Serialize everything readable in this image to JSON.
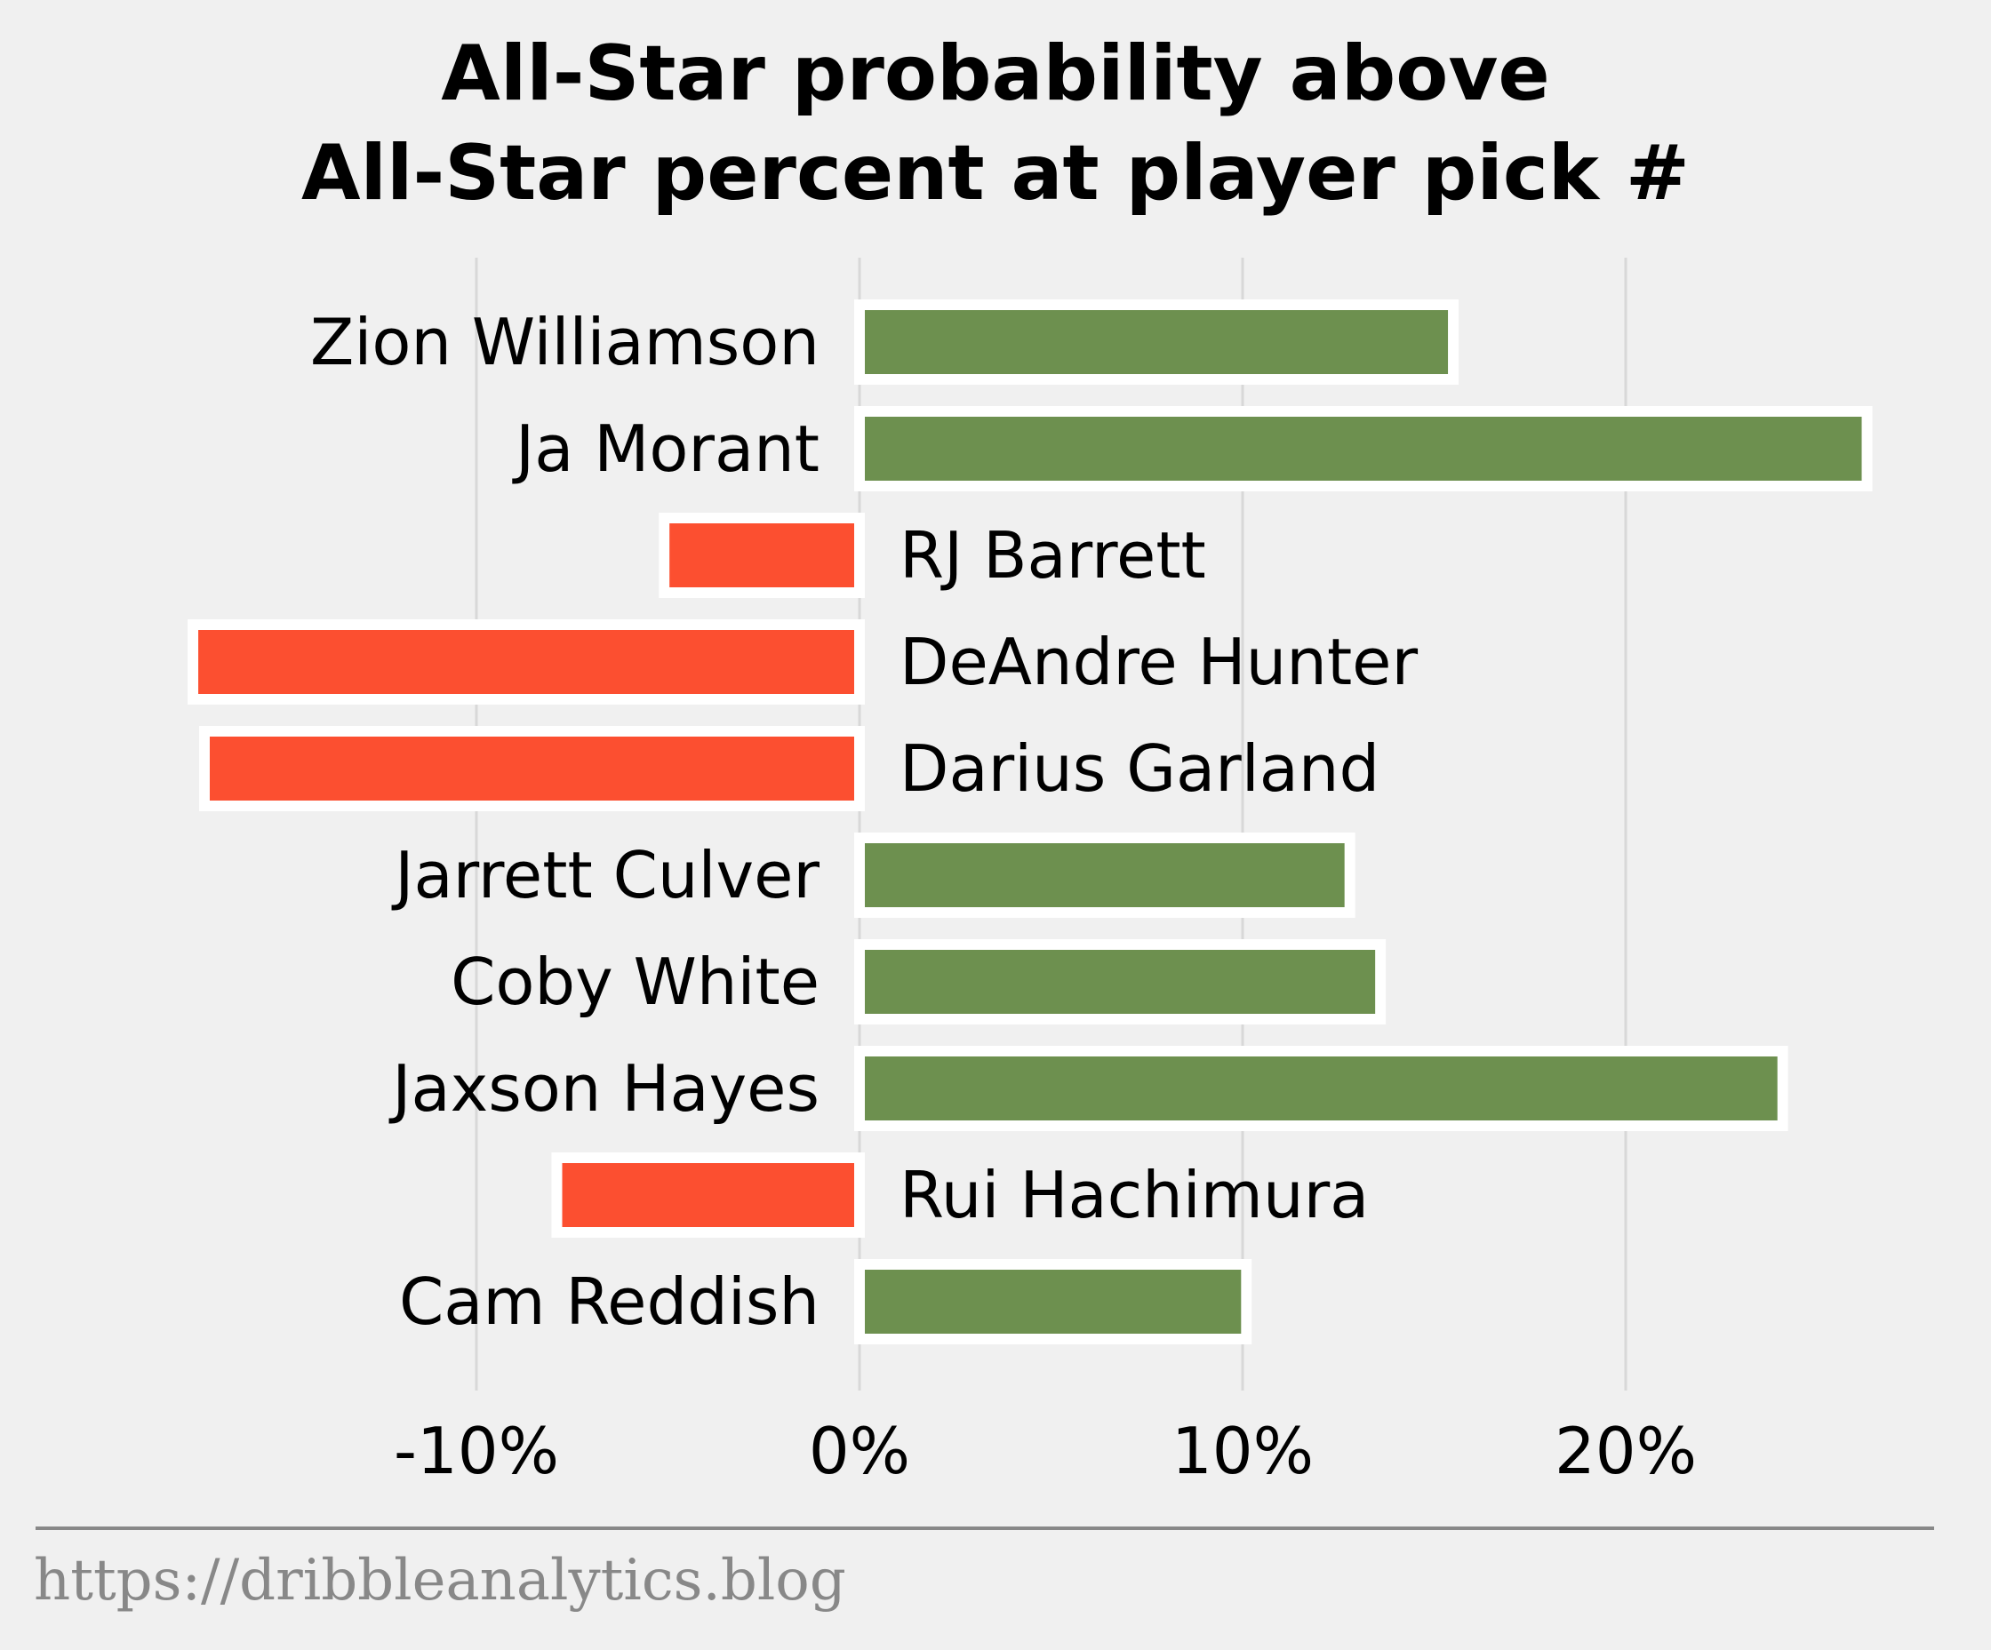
{
  "chart_data": {
    "type": "bar",
    "orientation": "horizontal",
    "title": [
      "All-Star probability above",
      "All-Star percent at player pick #"
    ],
    "categories": [
      "Zion Williamson",
      "Ja Morant",
      "RJ Barrett",
      "DeAndre Hunter",
      "Darius Garland",
      "Jarrett Culver",
      "Coby White",
      "Jaxson Hayes",
      "Rui Hachimura",
      "Cam Reddish"
    ],
    "values": [
      15.5,
      26.3,
      -5.1,
      -17.4,
      -17.1,
      12.8,
      13.6,
      24.1,
      -7.9,
      10.1
    ],
    "xlim": [
      -20,
      27.5
    ],
    "xticks": [
      -10,
      0,
      10,
      20
    ],
    "xtick_labels": [
      "-10%",
      "0%",
      "10%",
      "20%"
    ],
    "grid": true,
    "colors": {
      "positive": "#6d904f",
      "negative": "#fc4f30",
      "background": "#f0f0f0",
      "grid": "#d8d8d8",
      "footer": "#888888"
    }
  },
  "footer": {
    "source": "https://dribbleanalytics.blog"
  }
}
